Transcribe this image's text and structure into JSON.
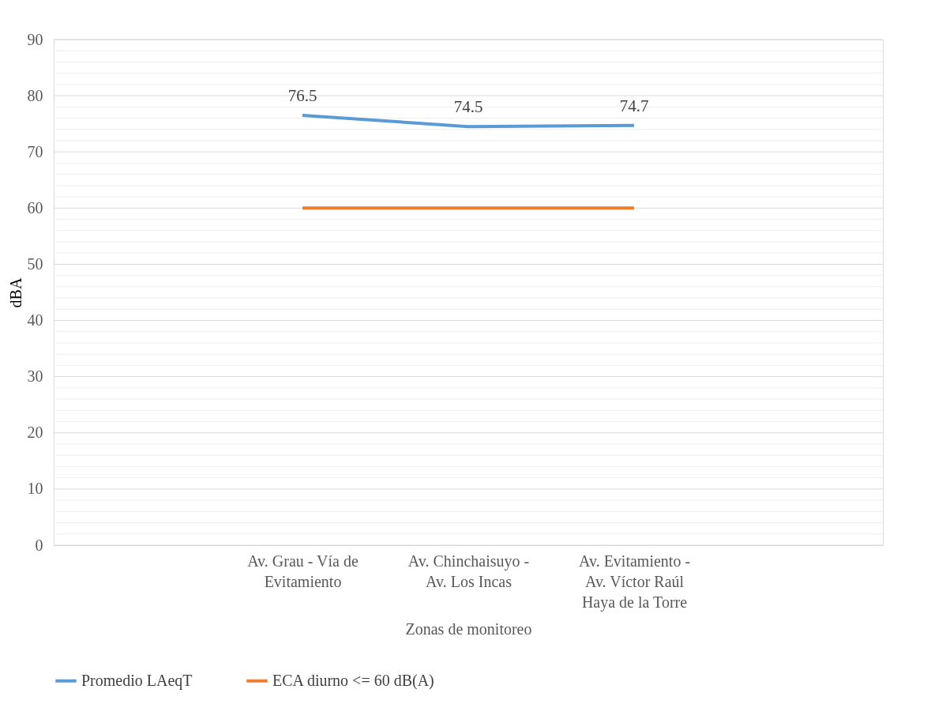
{
  "chart_data": {
    "type": "line",
    "xlabel": "Zonas de monitoreo",
    "ylabel": "dBA",
    "categories": [
      null,
      "Av. Grau - Vía de Evitamiento",
      "Av. Chinchaisuyo - Av. Los Incas",
      "Av. Evitamiento - Av. Víctor Raúl Haya de la Torre",
      null
    ],
    "series": [
      {
        "name": "Promedio LAeqT",
        "color": "#5b9bd5",
        "values": [
          null,
          76.5,
          74.5,
          74.7,
          null
        ],
        "value_labels": [
          null,
          "76.5",
          "74.5",
          "74.7",
          null
        ]
      },
      {
        "name": "ECA diurno <= 60 dB(A)",
        "color": "#ed7d31",
        "values": [
          null,
          60,
          60,
          60,
          null
        ]
      }
    ],
    "ylim": [
      0,
      90
    ],
    "yticks": [
      0,
      {
        "value": 2,
        "label": null
      },
      {
        "value": 4,
        "label": null
      },
      {
        "value": 6,
        "label": null
      },
      {
        "value": 8,
        "label": null
      },
      10,
      {
        "value": 12,
        "label": null
      },
      {
        "value": 14,
        "label": null
      },
      {
        "value": 16,
        "label": null
      },
      {
        "value": 18,
        "label": null
      },
      20,
      {
        "value": 22,
        "label": null
      },
      {
        "value": 24,
        "label": null
      },
      {
        "value": 26,
        "label": null
      },
      {
        "value": 28,
        "label": null
      },
      30,
      {
        "value": 32,
        "label": null
      },
      {
        "value": 34,
        "label": null
      },
      {
        "value": 36,
        "label": null
      },
      {
        "value": 38,
        "label": null
      },
      40,
      {
        "value": 42,
        "label": null
      },
      {
        "value": 44,
        "label": null
      },
      {
        "value": 46,
        "label": null
      },
      {
        "value": 48,
        "label": null
      },
      50,
      {
        "value": 52,
        "label": null
      },
      {
        "value": 54,
        "label": null
      },
      {
        "value": 56,
        "label": null
      },
      {
        "value": 58,
        "label": null
      },
      60,
      {
        "value": 62,
        "label": null
      },
      {
        "value": 64,
        "label": null
      },
      {
        "value": 66,
        "label": null
      },
      {
        "value": 68,
        "label": null
      },
      70,
      {
        "value": 72,
        "label": null
      },
      {
        "value": 74,
        "label": null
      },
      {
        "value": 76,
        "label": null
      },
      {
        "value": 78,
        "label": null
      },
      80,
      {
        "value": 82,
        "label": null
      },
      {
        "value": 84,
        "label": null
      },
      {
        "value": 86,
        "label": null
      },
      {
        "value": 88,
        "label": null
      },
      90
    ],
    "grid": true,
    "legend": "bottom",
    "marker": "none",
    "line_style": "solid"
  }
}
